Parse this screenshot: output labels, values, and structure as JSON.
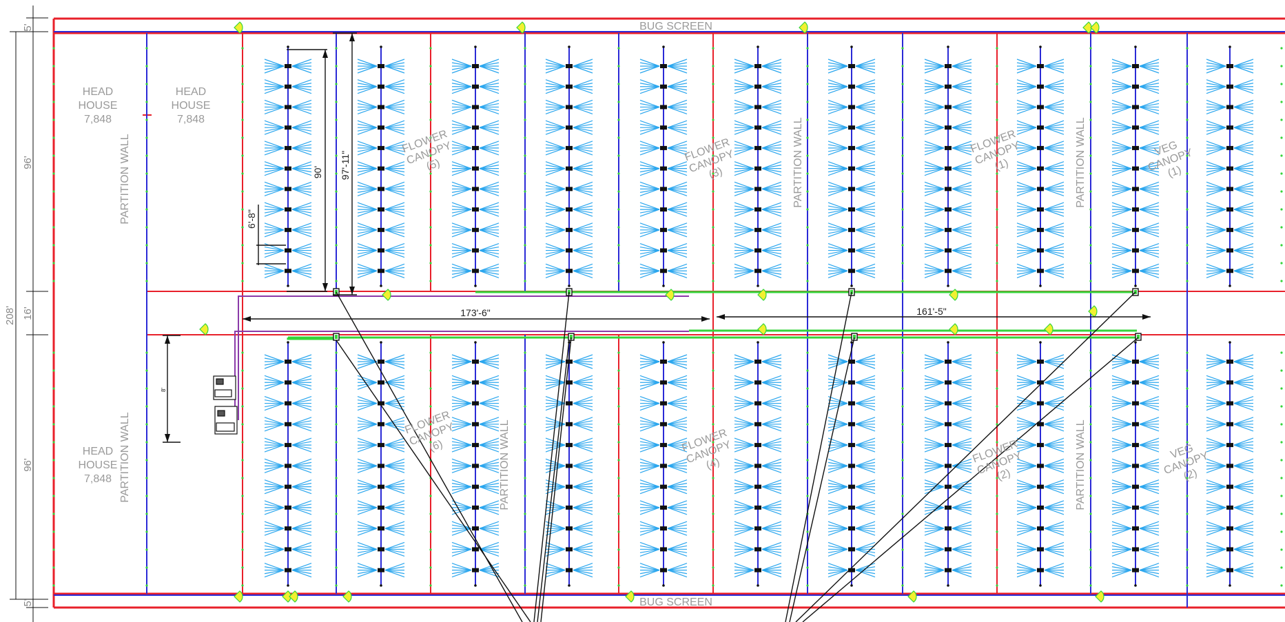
{
  "colors": {
    "outer_wall": "#e8202a",
    "partition": "#2a2ad6",
    "sprinkler": "#2aa6ee",
    "main_line": "#36d43a",
    "supply_line": "#8a3aa8",
    "dimension": "#111111",
    "label": "#9a9a9a",
    "fan": "#f2f030"
  },
  "labels": {
    "bug_screen_top": "BUG SCREEN",
    "bug_screen_bottom": "BUG SCREEN",
    "head_house_1": [
      "HEAD",
      "HOUSE",
      "7,848"
    ],
    "head_house_2": [
      "HEAD",
      "HOUSE",
      "7,848"
    ],
    "head_house_3": [
      "HEAD",
      "HOUSE",
      "7,848"
    ],
    "partition_wall": "PARTITION WALL",
    "flower_canopy_5": [
      "FLOWER",
      "CANOPY",
      "(5)"
    ],
    "flower_canopy_3": [
      "FLOWER",
      "CANOPY",
      "(3)"
    ],
    "flower_canopy_1": [
      "FLOWER",
      "CANOPY",
      "(1)"
    ],
    "veg_canopy_1": [
      "VEG",
      "CANOPY",
      "(1)"
    ],
    "flower_canopy_6": [
      "FLOWER",
      "CANOPY",
      "(6)"
    ],
    "flower_canopy_4": [
      "FLOWER",
      "CANOPY",
      "(4)"
    ],
    "flower_canopy_2": [
      "FLOWER",
      "CANOPY",
      "(2)"
    ],
    "veg_canopy_2": [
      "VEG",
      "CANOPY",
      "(2)"
    ]
  },
  "dimensions": {
    "left_total": "208'",
    "left_top": "5'",
    "left_upper": "96'",
    "left_mid": "16'",
    "left_lower": "96'",
    "left_bottom": "5'",
    "row_length": "90'",
    "bay_length": "97'-11\"",
    "emitter_spacing": "6'-8\"",
    "small_room": "8'",
    "run_left": "173'-6\"",
    "run_right": "161'-5\""
  }
}
